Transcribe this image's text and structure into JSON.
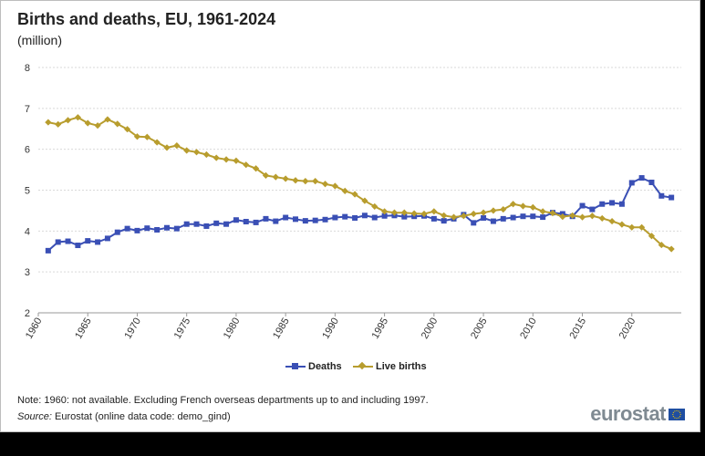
{
  "header": {
    "title": "Births and deaths, EU, 1961-2024",
    "unit": "(million)"
  },
  "legend": {
    "deaths_label": "Deaths",
    "births_label": "Live births"
  },
  "footer": {
    "note": "Note: 1960: not available. Excluding French overseas departments up to and including 1997.",
    "source_label": "Source:",
    "source_text": "Eurostat (online data code: demo_gind)",
    "brand": "eurostat"
  },
  "colors": {
    "deaths": "#3a4fb5",
    "births": "#b89d2e",
    "grid": "#d9d9d9",
    "flag_blue": "#1f4ea1",
    "flag_star": "#f2c500"
  },
  "chart_data": {
    "type": "line",
    "title": "Births and deaths, EU, 1961-2024",
    "subtitle": "(million)",
    "xlabel": "",
    "ylabel": "",
    "xlim": [
      1960,
      2025
    ],
    "ylim": [
      2,
      8
    ],
    "yticks": [
      2,
      3,
      4,
      5,
      6,
      7,
      8
    ],
    "xticks": [
      1960,
      1965,
      1970,
      1975,
      1980,
      1985,
      1990,
      1995,
      2000,
      2005,
      2010,
      2015,
      2020
    ],
    "grid": true,
    "legend_position": "bottom-center",
    "x": [
      1961,
      1962,
      1963,
      1964,
      1965,
      1966,
      1967,
      1968,
      1969,
      1970,
      1971,
      1972,
      1973,
      1974,
      1975,
      1976,
      1977,
      1978,
      1979,
      1980,
      1981,
      1982,
      1983,
      1984,
      1985,
      1986,
      1987,
      1988,
      1989,
      1990,
      1991,
      1992,
      1993,
      1994,
      1995,
      1996,
      1997,
      1998,
      1999,
      2000,
      2001,
      2002,
      2003,
      2004,
      2005,
      2006,
      2007,
      2008,
      2009,
      2010,
      2011,
      2012,
      2013,
      2014,
      2015,
      2016,
      2017,
      2018,
      2019,
      2020,
      2021,
      2022,
      2023,
      2024
    ],
    "series": [
      {
        "name": "Deaths",
        "marker": "square",
        "values": [
          3.52,
          3.73,
          3.75,
          3.65,
          3.76,
          3.73,
          3.82,
          3.97,
          4.06,
          4.01,
          4.07,
          4.03,
          4.08,
          4.06,
          4.17,
          4.17,
          4.12,
          4.19,
          4.17,
          4.27,
          4.23,
          4.21,
          4.3,
          4.24,
          4.33,
          4.29,
          4.25,
          4.26,
          4.28,
          4.33,
          4.35,
          4.32,
          4.38,
          4.33,
          4.37,
          4.38,
          4.35,
          4.36,
          4.37,
          4.3,
          4.25,
          4.3,
          4.4,
          4.2,
          4.32,
          4.24,
          4.3,
          4.33,
          4.36,
          4.36,
          4.34,
          4.45,
          4.42,
          4.36,
          4.62,
          4.53,
          4.66,
          4.69,
          4.66,
          5.18,
          5.3,
          5.19,
          4.86,
          4.82
        ]
      },
      {
        "name": "Live births",
        "marker": "diamond",
        "values": [
          6.66,
          6.61,
          6.71,
          6.78,
          6.64,
          6.58,
          6.73,
          6.62,
          6.49,
          6.31,
          6.3,
          6.17,
          6.04,
          6.09,
          5.97,
          5.93,
          5.87,
          5.79,
          5.75,
          5.72,
          5.62,
          5.53,
          5.36,
          5.32,
          5.28,
          5.24,
          5.22,
          5.22,
          5.15,
          5.1,
          4.98,
          4.9,
          4.74,
          4.6,
          4.48,
          4.45,
          4.45,
          4.43,
          4.42,
          4.48,
          4.38,
          4.34,
          4.37,
          4.42,
          4.45,
          4.5,
          4.53,
          4.66,
          4.61,
          4.58,
          4.48,
          4.44,
          4.35,
          4.38,
          4.34,
          4.37,
          4.31,
          4.24,
          4.16,
          4.09,
          4.09,
          3.88,
          3.66,
          3.56
        ]
      }
    ]
  }
}
